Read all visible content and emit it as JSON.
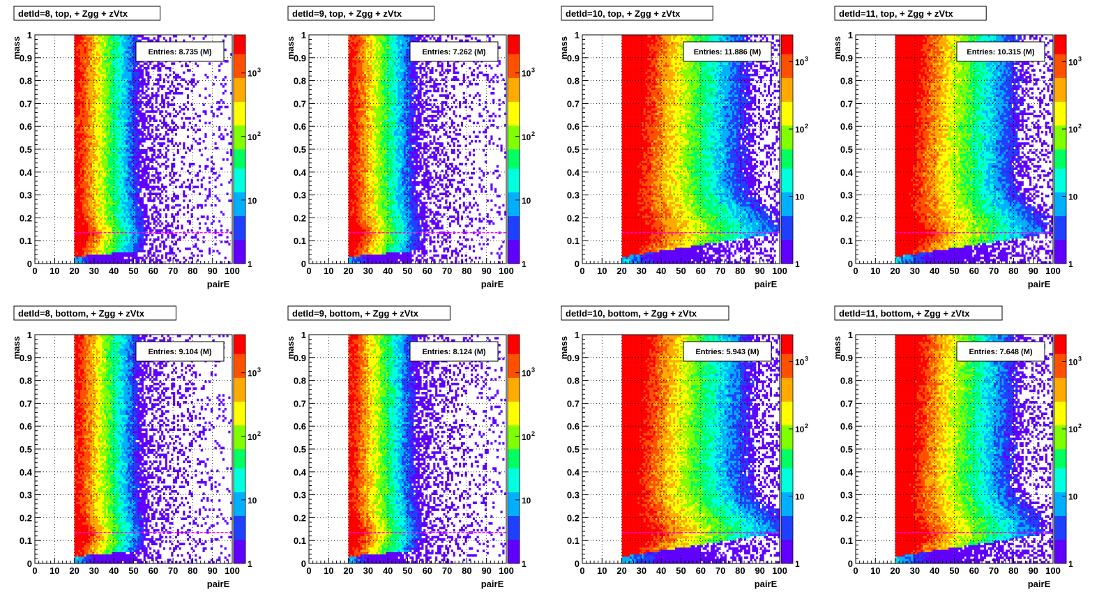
{
  "panels": [
    {
      "title": "detId=8, top, + Zgg + zVtx",
      "entries": "Entries: 8.735 (M)",
      "ext": 0.85,
      "vnarrow": 1.0,
      "zlog_max": 3.6,
      "zticks": [
        {
          "v": 1,
          "label": "1"
        },
        {
          "v": 10,
          "label": "10"
        },
        {
          "v": 100,
          "label": "10",
          "sup": "2"
        },
        {
          "v": 1000,
          "label": "10",
          "sup": "3"
        }
      ]
    },
    {
      "title": "detId=9, top, + Zgg + zVtx",
      "entries": "Entries: 7.262 (M)",
      "ext": 0.9,
      "vnarrow": 1.0,
      "zlog_max": 3.6,
      "zticks": [
        {
          "v": 1,
          "label": "1"
        },
        {
          "v": 10,
          "label": "10"
        },
        {
          "v": 100,
          "label": "10",
          "sup": "2"
        },
        {
          "v": 1000,
          "label": "10",
          "sup": "3"
        }
      ]
    },
    {
      "title": "detId=10, top, + Zgg + zVtx",
      "entries": "Entries: 11.886 (M)",
      "ext": 1.5,
      "vnarrow": 0.7,
      "zlog_max": 3.4,
      "zticks": [
        {
          "v": 1,
          "label": "1"
        },
        {
          "v": 10,
          "label": "10"
        },
        {
          "v": 100,
          "label": "10",
          "sup": "2"
        },
        {
          "v": 1000,
          "label": "10",
          "sup": "3"
        }
      ]
    },
    {
      "title": "detId=11, top, + Zgg + zVtx",
      "entries": "Entries: 10.315 (M)",
      "ext": 1.45,
      "vnarrow": 0.7,
      "zlog_max": 3.4,
      "zticks": [
        {
          "v": 1,
          "label": "1"
        },
        {
          "v": 10,
          "label": "10"
        },
        {
          "v": 100,
          "label": "10",
          "sup": "2"
        },
        {
          "v": 1000,
          "label": "10",
          "sup": "3"
        }
      ]
    },
    {
      "title": "detId=8, bottom, + Zgg + zVtx",
      "entries": "Entries: 9.104 (M)",
      "ext": 0.85,
      "vnarrow": 1.0,
      "zlog_max": 3.6,
      "zticks": [
        {
          "v": 1,
          "label": "1"
        },
        {
          "v": 10,
          "label": "10"
        },
        {
          "v": 100,
          "label": "10",
          "sup": "2"
        },
        {
          "v": 1000,
          "label": "10",
          "sup": "3"
        }
      ]
    },
    {
      "title": "detId=9, bottom, + Zgg + zVtx",
      "entries": "Entries: 8.124 (M)",
      "ext": 0.9,
      "vnarrow": 1.0,
      "zlog_max": 3.6,
      "zticks": [
        {
          "v": 1,
          "label": "1"
        },
        {
          "v": 10,
          "label": "10"
        },
        {
          "v": 100,
          "label": "10",
          "sup": "2"
        },
        {
          "v": 1000,
          "label": "10",
          "sup": "3"
        }
      ]
    },
    {
      "title": "detId=10, bottom, + Zgg + zVtx",
      "entries": "Entries: 5.943 (M)",
      "ext": 1.55,
      "vnarrow": 0.7,
      "zlog_max": 3.4,
      "zticks": [
        {
          "v": 1,
          "label": "1"
        },
        {
          "v": 10,
          "label": "10"
        },
        {
          "v": 100,
          "label": "10",
          "sup": "2"
        },
        {
          "v": 1000,
          "label": "10",
          "sup": "3"
        }
      ]
    },
    {
      "title": "detId=11, bottom, + Zgg + zVtx",
      "entries": "Entries: 7.648 (M)",
      "ext": 1.4,
      "vnarrow": 0.7,
      "zlog_max": 3.4,
      "zticks": [
        {
          "v": 1,
          "label": "1"
        },
        {
          "v": 10,
          "label": "10"
        },
        {
          "v": 100,
          "label": "10",
          "sup": "2"
        },
        {
          "v": 1000,
          "label": "10",
          "sup": "3"
        }
      ]
    }
  ],
  "chart_data": {
    "type": "heatmap",
    "xlabel": "pairE",
    "ylabel": "mass",
    "xlim": [
      0,
      100
    ],
    "ylim": [
      0,
      1
    ],
    "xticks": [
      "0",
      "10",
      "20",
      "30",
      "40",
      "50",
      "60",
      "70",
      "80",
      "90",
      "100"
    ],
    "yticks": [
      "0",
      "0.1",
      "0.2",
      "0.3",
      "0.4",
      "0.5",
      "0.6",
      "0.7",
      "0.8",
      "0.9",
      "1"
    ],
    "z_scale": "log",
    "grid": true,
    "pairE_threshold": 20,
    "reference_line_mass": 0.135,
    "reference_line_color": "#ff00ff",
    "colormap": [
      "#6000ff",
      "#2040ff",
      "#00b0ff",
      "#00ffdd",
      "#00ff60",
      "#80ff00",
      "#ffff00",
      "#ffaa00",
      "#ff5000",
      "#ff0000"
    ]
  }
}
